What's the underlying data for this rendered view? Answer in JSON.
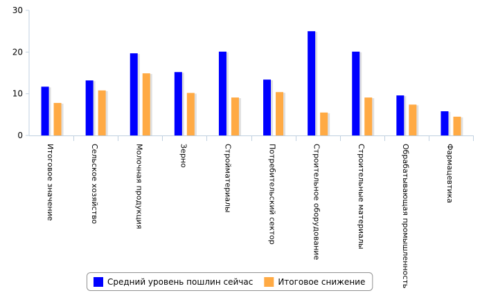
{
  "chart_data": {
    "type": "bar",
    "title": "",
    "xlabel": "",
    "ylabel": "",
    "ylim": [
      0,
      30
    ],
    "yticks": [
      0,
      10,
      20,
      30
    ],
    "grid": false,
    "legend_position": "bottom-center",
    "categories": [
      "Итоговое значение",
      "Сельское хозяйство",
      "Молочная продукция",
      "Зерно",
      "Стройматериалы",
      "Потребительский сектор",
      "Строительное оборудование",
      "Строительные материалы",
      "Обрабатывающая промышленность",
      "Фармацевтика"
    ],
    "series": [
      {
        "name": "Средний уровень пошлин сейчас",
        "color": "#0000ff",
        "values": [
          11.7,
          13.2,
          19.7,
          15.2,
          20.1,
          13.4,
          25.0,
          20.1,
          9.6,
          5.8
        ]
      },
      {
        "name": "Итоговое снижение",
        "color": "#ffaa44",
        "values": [
          7.8,
          10.8,
          14.9,
          10.2,
          9.1,
          10.4,
          5.5,
          9.1,
          7.4,
          4.5
        ]
      }
    ]
  }
}
